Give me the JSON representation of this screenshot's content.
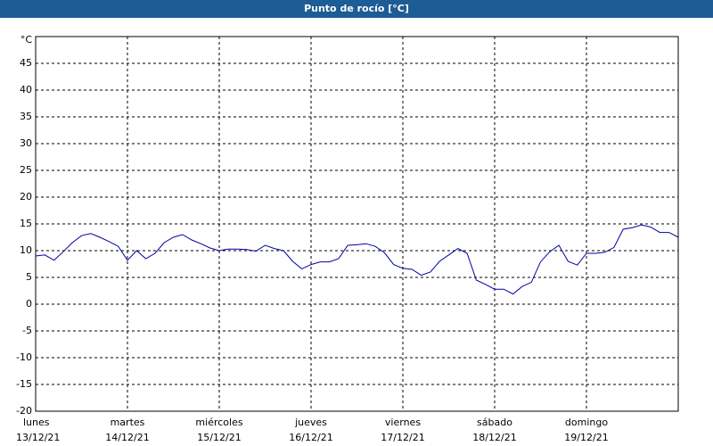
{
  "chart_data": {
    "type": "line",
    "title": "Punto de rocío [°C]",
    "y_unit": "°C",
    "x": [
      0,
      0.1,
      0.2,
      0.3,
      0.4,
      0.5,
      0.6,
      0.7,
      0.8,
      0.9,
      1,
      1.1,
      1.2,
      1.3,
      1.4,
      1.5,
      1.6,
      1.7,
      1.8,
      1.9,
      2,
      2.1,
      2.2,
      2.3,
      2.4,
      2.5,
      2.6,
      2.7,
      2.8,
      2.9,
      3,
      3.1,
      3.2,
      3.3,
      3.4,
      3.5,
      3.6,
      3.7,
      3.8,
      3.9,
      4,
      4.1,
      4.2,
      4.3,
      4.4,
      4.5,
      4.6,
      4.7,
      4.8,
      4.9,
      5,
      5.1,
      5.2,
      5.3,
      5.4,
      5.5,
      5.6,
      5.7,
      5.8,
      5.9,
      6,
      6.1,
      6.2,
      6.3,
      6.4,
      6.5,
      6.6,
      6.7,
      6.8,
      6.9,
      7
    ],
    "series": [
      {
        "color": "#0000a0",
        "values": [
          9,
          9.2,
          8.2,
          9.8,
          11.5,
          12.8,
          13.2,
          12.5,
          11.7,
          10.8,
          8.2,
          10,
          8.5,
          9.5,
          11.5,
          12.5,
          13,
          12,
          11.3,
          10.5,
          10,
          10.3,
          10.3,
          10.2,
          9.9,
          11,
          10.4,
          10,
          8,
          6.6,
          7.4,
          7.9,
          7.9,
          8.5,
          11,
          11.1,
          11.3,
          10.8,
          9.6,
          7.4,
          6.7,
          6.5,
          5.4,
          6,
          8,
          9.2,
          10.4,
          9.5,
          4.5,
          3.7,
          2.8,
          2.8,
          1.9,
          3.3,
          4.1,
          7.9,
          9.8,
          11,
          8,
          7.3,
          9.5,
          9.5,
          9.7,
          10.6,
          14,
          14.3,
          14.8,
          14.4,
          13.4,
          13.4,
          12.5
        ]
      }
    ],
    "xlim": [
      0,
      7
    ],
    "xticks": [
      {
        "value": 0,
        "label": "lunes"
      },
      {
        "value": 1,
        "label": "martes"
      },
      {
        "value": 2,
        "label": "miércoles"
      },
      {
        "value": 3,
        "label": "jueves"
      },
      {
        "value": 4,
        "label": "viernes"
      },
      {
        "value": 5,
        "label": "sábado"
      },
      {
        "value": 6,
        "label": "domingo"
      }
    ],
    "xtick_dates": [
      "13/12/21",
      "14/12/21",
      "15/12/21",
      "16/12/21",
      "17/12/21",
      "18/12/21",
      "19/12/21"
    ],
    "ylim": [
      -20,
      50
    ],
    "yticks": [
      -20,
      -15,
      -10,
      -5,
      0,
      5,
      10,
      15,
      20,
      25,
      30,
      35,
      40,
      45
    ],
    "grid": true
  }
}
